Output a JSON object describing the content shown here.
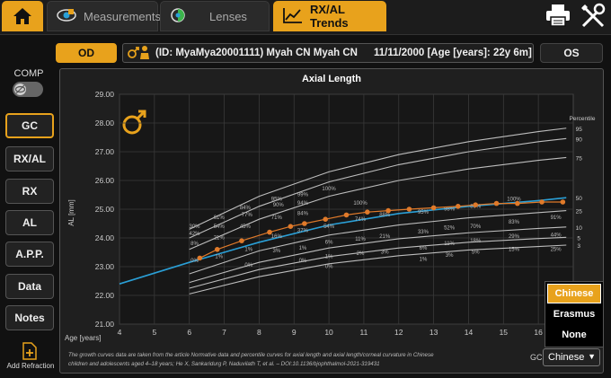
{
  "tabs": {
    "measurements": "Measurements",
    "lenses": "Lenses",
    "trends": "RX/AL Trends"
  },
  "eye": {
    "od": "OD",
    "os": "OS"
  },
  "patient": {
    "id_name": "(ID: MyaMya20001111) Myah CN Myah CN",
    "birth_age": "11/11/2000 [Age [years]: 22y 6m]"
  },
  "comp_label": "COMP",
  "sidebar": {
    "gc": "GC",
    "rxal": "RX/AL",
    "rx": "RX",
    "al": "AL",
    "app": "A.P.P.",
    "data": "Data",
    "notes": "Notes",
    "add_refraction": "Add Refraction"
  },
  "gc_options": [
    "Chinese",
    "Erasmus",
    "None"
  ],
  "gc_label": "GC",
  "gc_selected": "Chinese",
  "footnote_1": "The growth curves data are taken from the article Normative data and percentile curves for axial length and axial length/corneal curvature in Chinese",
  "footnote_2": "children and adolescents aged 4–18 years; He X, Sankaridurg P, Naduvilath T, et al. – DOI:10.1136/bjophthalmol-2021-319431",
  "colors": {
    "accent": "#e8a21c",
    "measured": "#e07a2a",
    "median": "#2a9fd6"
  },
  "chart_data": {
    "type": "line",
    "title": "Axial Length",
    "xlabel": "Age [years]",
    "ylabel": "AL [mm]",
    "xlim": [
      4,
      17
    ],
    "ylim": [
      21,
      29
    ],
    "x_ticks": [
      "4",
      "5",
      "6",
      "7",
      "8",
      "9",
      "10",
      "11",
      "12",
      "13",
      "14",
      "15",
      "16"
    ],
    "y_ticks": [
      "21.00",
      "22.00",
      "23.00",
      "24.00",
      "25.00",
      "26.00",
      "27.00",
      "28.00",
      "29.00"
    ],
    "legend_title": "Percentile",
    "percentile_labels": [
      "95",
      "90",
      "75",
      "50",
      "25",
      "10",
      "5",
      "3"
    ],
    "percentile_curves": [
      {
        "p": "95",
        "x": [
          6,
          8,
          10,
          12,
          14,
          16,
          16.8
        ],
        "y": [
          24.3,
          25.45,
          26.3,
          26.9,
          27.35,
          27.7,
          27.82
        ]
      },
      {
        "p": "90",
        "x": [
          6,
          8,
          10,
          12,
          14,
          16,
          16.8
        ],
        "y": [
          24.0,
          25.1,
          25.95,
          26.55,
          27.0,
          27.35,
          27.46
        ]
      },
      {
        "p": "75",
        "x": [
          6,
          8,
          10,
          12,
          14,
          16,
          16.8
        ],
        "y": [
          23.6,
          24.65,
          25.45,
          26.0,
          26.4,
          26.7,
          26.8
        ]
      },
      {
        "p": "50",
        "x": [
          4,
          6,
          8,
          10,
          12,
          14,
          16,
          16.8
        ],
        "y": [
          22.4,
          23.15,
          23.85,
          24.45,
          24.85,
          25.1,
          25.3,
          25.4
        ]
      },
      {
        "p": "25",
        "x": [
          6,
          8,
          10,
          12,
          14,
          16,
          16.8
        ],
        "y": [
          22.75,
          23.55,
          24.1,
          24.45,
          24.7,
          24.88,
          24.95
        ]
      },
      {
        "p": "10",
        "x": [
          6,
          8,
          10,
          12,
          14,
          16,
          16.8
        ],
        "y": [
          22.45,
          23.15,
          23.65,
          23.97,
          24.18,
          24.33,
          24.38
        ]
      },
      {
        "p": "5",
        "x": [
          6,
          8,
          10,
          12,
          14,
          16,
          16.8
        ],
        "y": [
          22.25,
          22.9,
          23.35,
          23.65,
          23.85,
          23.98,
          24.02
        ]
      },
      {
        "p": "3",
        "x": [
          6,
          8,
          10,
          12,
          14,
          16,
          16.8
        ],
        "y": [
          22.05,
          22.65,
          23.1,
          23.38,
          23.58,
          23.7,
          23.75
        ]
      }
    ],
    "series": [
      {
        "name": "Measured",
        "x": [
          6.3,
          6.8,
          7.5,
          8.3,
          8.9,
          9.3,
          9.9,
          10.5,
          11.1,
          11.7,
          12.3,
          13,
          13.7,
          14.2,
          14.8,
          15.4,
          16.1,
          16.7
        ],
        "y": [
          23.3,
          23.6,
          23.9,
          24.2,
          24.4,
          24.5,
          24.65,
          24.8,
          24.9,
          24.95,
          25.0,
          25.05,
          25.1,
          25.15,
          25.2,
          25.2,
          25.25,
          25.25
        ]
      }
    ],
    "annotations": [
      {
        "text": "30%",
        "x": 6.15,
        "y": 24.35
      },
      {
        "text": "42%",
        "x": 6.15,
        "y": 24.1
      },
      {
        "text": "8%",
        "x": 6.15,
        "y": 23.75
      },
      {
        "text": "0%",
        "x": 6.15,
        "y": 23.15
      },
      {
        "text": "61%",
        "x": 6.85,
        "y": 24.65
      },
      {
        "text": "54%",
        "x": 6.85,
        "y": 24.35
      },
      {
        "text": "21%",
        "x": 6.85,
        "y": 23.95
      },
      {
        "text": "1%",
        "x": 6.85,
        "y": 23.3
      },
      {
        "text": "84%",
        "x": 7.6,
        "y": 25.0
      },
      {
        "text": "45%",
        "x": 7.6,
        "y": 24.35
      },
      {
        "text": "1%",
        "x": 7.7,
        "y": 23.55
      },
      {
        "text": "0%",
        "x": 7.7,
        "y": 23.0
      },
      {
        "text": "77%",
        "x": 7.65,
        "y": 24.75
      },
      {
        "text": "95%",
        "x": 8.5,
        "y": 25.3
      },
      {
        "text": "71%",
        "x": 8.5,
        "y": 24.65
      },
      {
        "text": "16%",
        "x": 8.5,
        "y": 24.0
      },
      {
        "text": "3%",
        "x": 8.5,
        "y": 23.5
      },
      {
        "text": "90%",
        "x": 8.55,
        "y": 25.1
      },
      {
        "text": "99%",
        "x": 9.25,
        "y": 25.45
      },
      {
        "text": "94%",
        "x": 9.25,
        "y": 25.15
      },
      {
        "text": "84%",
        "x": 9.25,
        "y": 24.8
      },
      {
        "text": "37%",
        "x": 9.25,
        "y": 24.2
      },
      {
        "text": "1%",
        "x": 9.25,
        "y": 23.6
      },
      {
        "text": "0%",
        "x": 9.25,
        "y": 23.15
      },
      {
        "text": "100%",
        "x": 10.0,
        "y": 25.65
      },
      {
        "text": "54%",
        "x": 10.0,
        "y": 24.35
      },
      {
        "text": "6%",
        "x": 10.0,
        "y": 23.8
      },
      {
        "text": "1%",
        "x": 10.0,
        "y": 23.3
      },
      {
        "text": "0%",
        "x": 10.0,
        "y": 22.95
      },
      {
        "text": "100%",
        "x": 10.9,
        "y": 25.15
      },
      {
        "text": "74%",
        "x": 10.9,
        "y": 24.6
      },
      {
        "text": "11%",
        "x": 10.9,
        "y": 23.9
      },
      {
        "text": "2%",
        "x": 10.9,
        "y": 23.4
      },
      {
        "text": "88%",
        "x": 11.6,
        "y": 24.75
      },
      {
        "text": "21%",
        "x": 11.6,
        "y": 24.0
      },
      {
        "text": "3%",
        "x": 11.6,
        "y": 23.45
      },
      {
        "text": "95%",
        "x": 12.7,
        "y": 24.85
      },
      {
        "text": "33%",
        "x": 12.7,
        "y": 24.15
      },
      {
        "text": "6%",
        "x": 12.7,
        "y": 23.6
      },
      {
        "text": "1%",
        "x": 12.7,
        "y": 23.2
      },
      {
        "text": "98%",
        "x": 13.45,
        "y": 24.95
      },
      {
        "text": "52%",
        "x": 13.45,
        "y": 24.3
      },
      {
        "text": "11%",
        "x": 13.45,
        "y": 23.75
      },
      {
        "text": "3%",
        "x": 13.45,
        "y": 23.35
      },
      {
        "text": "86%",
        "x": 14.2,
        "y": 25.05
      },
      {
        "text": "70%",
        "x": 14.2,
        "y": 24.35
      },
      {
        "text": "18%",
        "x": 14.2,
        "y": 23.85
      },
      {
        "text": "5%",
        "x": 14.2,
        "y": 23.45
      },
      {
        "text": "100%",
        "x": 15.3,
        "y": 25.3
      },
      {
        "text": "83%",
        "x": 15.3,
        "y": 24.5
      },
      {
        "text": "29%",
        "x": 15.3,
        "y": 24.0
      },
      {
        "text": "15%",
        "x": 15.3,
        "y": 23.55
      },
      {
        "text": "91%",
        "x": 16.5,
        "y": 24.65
      },
      {
        "text": "44%",
        "x": 16.5,
        "y": 24.05
      },
      {
        "text": "25%",
        "x": 16.5,
        "y": 23.55
      }
    ]
  }
}
